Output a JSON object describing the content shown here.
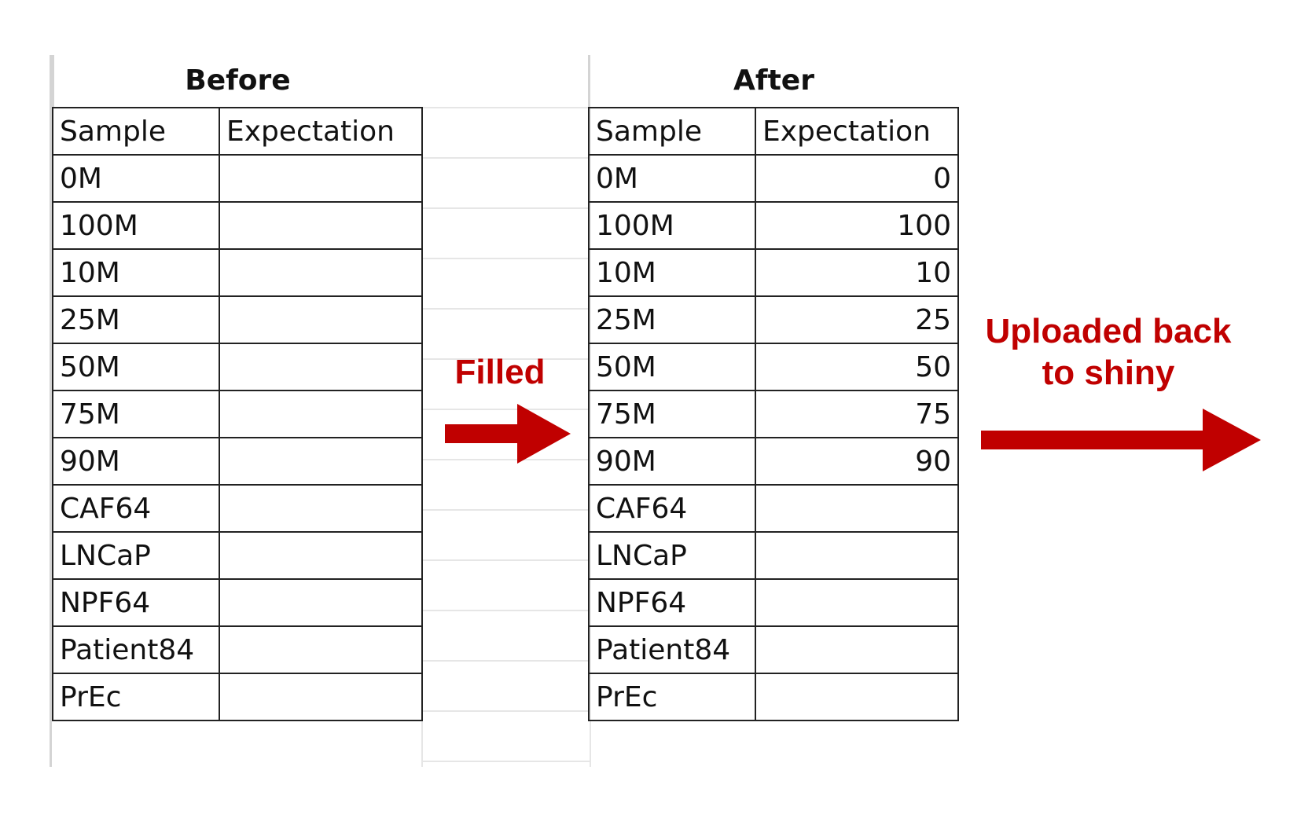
{
  "before": {
    "title": "Before",
    "headers": [
      "Sample",
      "Expectation"
    ],
    "rows": [
      {
        "sample": "0M",
        "expectation": ""
      },
      {
        "sample": "100M",
        "expectation": ""
      },
      {
        "sample": "10M",
        "expectation": ""
      },
      {
        "sample": "25M",
        "expectation": ""
      },
      {
        "sample": "50M",
        "expectation": ""
      },
      {
        "sample": "75M",
        "expectation": ""
      },
      {
        "sample": "90M",
        "expectation": ""
      },
      {
        "sample": "CAF64",
        "expectation": ""
      },
      {
        "sample": "LNCaP",
        "expectation": ""
      },
      {
        "sample": "NPF64",
        "expectation": ""
      },
      {
        "sample": "Patient84",
        "expectation": ""
      },
      {
        "sample": "PrEc",
        "expectation": ""
      }
    ]
  },
  "after": {
    "title": "After",
    "headers": [
      "Sample",
      "Expectation"
    ],
    "rows": [
      {
        "sample": "0M",
        "expectation": "0"
      },
      {
        "sample": "100M",
        "expectation": "100"
      },
      {
        "sample": "10M",
        "expectation": "10"
      },
      {
        "sample": "25M",
        "expectation": "25"
      },
      {
        "sample": "50M",
        "expectation": "50"
      },
      {
        "sample": "75M",
        "expectation": "75"
      },
      {
        "sample": "90M",
        "expectation": "90"
      },
      {
        "sample": "CAF64",
        "expectation": ""
      },
      {
        "sample": "LNCaP",
        "expectation": ""
      },
      {
        "sample": "NPF64",
        "expectation": ""
      },
      {
        "sample": "Patient84",
        "expectation": ""
      },
      {
        "sample": "PrEc",
        "expectation": ""
      }
    ]
  },
  "arrows": {
    "filled_label": "Filled",
    "uploaded_label": "Uploaded back to shiny",
    "color": "#c00000"
  }
}
